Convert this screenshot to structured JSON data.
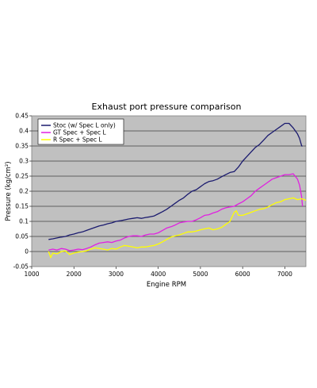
{
  "chart_data": {
    "type": "line",
    "title": "Exhaust port pressure comparison",
    "xlabel": "Engine RPM",
    "ylabel": "Pressure (kg/cm²)",
    "xlim": [
      1000,
      7500
    ],
    "ylim": [
      -0.05,
      0.45
    ],
    "x_ticks": [
      1000,
      2000,
      3000,
      4000,
      5000,
      6000,
      7000
    ],
    "y_ticks": [
      -0.05,
      0,
      0.05,
      0.1,
      0.15,
      0.2,
      0.25,
      0.3,
      0.35,
      0.4,
      0.45
    ],
    "x_tick_labels": [
      "1000",
      "2000",
      "3000",
      "4000",
      "5000",
      "6000",
      "7000"
    ],
    "y_tick_labels": [
      "-0.05",
      "0",
      "0.05",
      "0.1",
      "0.15",
      "0.2",
      "0.25",
      "0.3",
      "0.35",
      "0.4",
      "0.45"
    ],
    "grid": "horizontal",
    "legend_position": "top-left",
    "plot_background": "#c0c0c0",
    "series": [
      {
        "name": "Stoc (w/ Spec L only)",
        "color": "#1a1a6e",
        "x": [
          1400,
          1500,
          1600,
          1700,
          1800,
          1900,
          2000,
          2100,
          2200,
          2300,
          2400,
          2500,
          2600,
          2700,
          2800,
          2900,
          3000,
          3100,
          3200,
          3300,
          3400,
          3500,
          3600,
          3700,
          3800,
          3900,
          4000,
          4100,
          4200,
          4300,
          4400,
          4500,
          4600,
          4700,
          4800,
          4900,
          5000,
          5100,
          5200,
          5300,
          5400,
          5500,
          5600,
          5700,
          5800,
          5900,
          6000,
          6100,
          6200,
          6300,
          6400,
          6500,
          6600,
          6700,
          6800,
          6900,
          7000,
          7100,
          7200,
          7300,
          7350,
          7400,
          7420
        ],
        "values": [
          0.04,
          0.042,
          0.045,
          0.048,
          0.05,
          0.055,
          0.058,
          0.062,
          0.065,
          0.07,
          0.075,
          0.08,
          0.085,
          0.088,
          0.092,
          0.095,
          0.1,
          0.102,
          0.105,
          0.108,
          0.11,
          0.112,
          0.11,
          0.113,
          0.115,
          0.118,
          0.125,
          0.132,
          0.14,
          0.15,
          0.16,
          0.17,
          0.178,
          0.19,
          0.2,
          0.205,
          0.215,
          0.225,
          0.232,
          0.235,
          0.24,
          0.248,
          0.255,
          0.262,
          0.265,
          0.28,
          0.3,
          0.315,
          0.33,
          0.345,
          0.355,
          0.37,
          0.385,
          0.395,
          0.405,
          0.415,
          0.425,
          0.425,
          0.41,
          0.39,
          0.375,
          0.35,
          0.35
        ]
      },
      {
        "name": "GT Spec + Spec L",
        "color": "#e020e0",
        "x": [
          1400,
          1500,
          1600,
          1700,
          1800,
          1900,
          2000,
          2100,
          2200,
          2300,
          2400,
          2500,
          2600,
          2700,
          2800,
          2900,
          3000,
          3100,
          3200,
          3300,
          3400,
          3500,
          3600,
          3700,
          3800,
          3900,
          4000,
          4100,
          4200,
          4300,
          4400,
          4500,
          4600,
          4700,
          4800,
          4900,
          5000,
          5100,
          5200,
          5300,
          5400,
          5500,
          5600,
          5700,
          5800,
          5900,
          6000,
          6100,
          6200,
          6300,
          6400,
          6500,
          6600,
          6700,
          6800,
          6900,
          7000,
          7100,
          7200,
          7300,
          7350,
          7400,
          7420
        ],
        "values": [
          0.005,
          0.008,
          0.005,
          0.01,
          0.008,
          0.003,
          0.005,
          0.008,
          0.006,
          0.01,
          0.015,
          0.022,
          0.028,
          0.03,
          0.032,
          0.03,
          0.035,
          0.038,
          0.045,
          0.05,
          0.052,
          0.052,
          0.05,
          0.055,
          0.058,
          0.058,
          0.062,
          0.07,
          0.078,
          0.082,
          0.088,
          0.095,
          0.098,
          0.1,
          0.1,
          0.105,
          0.112,
          0.12,
          0.122,
          0.128,
          0.132,
          0.14,
          0.145,
          0.148,
          0.15,
          0.158,
          0.165,
          0.175,
          0.185,
          0.2,
          0.21,
          0.22,
          0.23,
          0.24,
          0.245,
          0.25,
          0.255,
          0.255,
          0.258,
          0.24,
          0.22,
          0.18,
          0.15
        ]
      },
      {
        "name": "R Spec + Spec L",
        "color": "#ffff00",
        "x": [
          1400,
          1450,
          1500,
          1600,
          1700,
          1800,
          1900,
          2000,
          2100,
          2200,
          2300,
          2400,
          2500,
          2600,
          2700,
          2800,
          2900,
          3000,
          3100,
          3200,
          3300,
          3400,
          3500,
          3600,
          3700,
          3800,
          3900,
          4000,
          4100,
          4200,
          4300,
          4400,
          4500,
          4600,
          4700,
          4800,
          4900,
          5000,
          5100,
          5200,
          5300,
          5400,
          5500,
          5600,
          5700,
          5800,
          5850,
          5900,
          6000,
          6100,
          6200,
          6300,
          6400,
          6500,
          6600,
          6700,
          6800,
          6900,
          7000,
          7100,
          7200,
          7300,
          7400,
          7500
        ],
        "values": [
          0.0,
          -0.02,
          -0.005,
          -0.008,
          0.0,
          0.002,
          -0.01,
          -0.005,
          -0.002,
          0.0,
          0.002,
          0.008,
          0.012,
          0.01,
          0.008,
          0.005,
          0.01,
          0.008,
          0.015,
          0.02,
          0.018,
          0.015,
          0.012,
          0.015,
          0.015,
          0.018,
          0.02,
          0.025,
          0.032,
          0.04,
          0.048,
          0.052,
          0.055,
          0.06,
          0.065,
          0.065,
          0.068,
          0.072,
          0.075,
          0.078,
          0.072,
          0.075,
          0.08,
          0.09,
          0.1,
          0.13,
          0.135,
          0.12,
          0.12,
          0.125,
          0.13,
          0.135,
          0.14,
          0.142,
          0.148,
          0.155,
          0.162,
          0.165,
          0.172,
          0.175,
          0.178,
          0.172,
          0.175,
          0.17
        ]
      }
    ]
  }
}
